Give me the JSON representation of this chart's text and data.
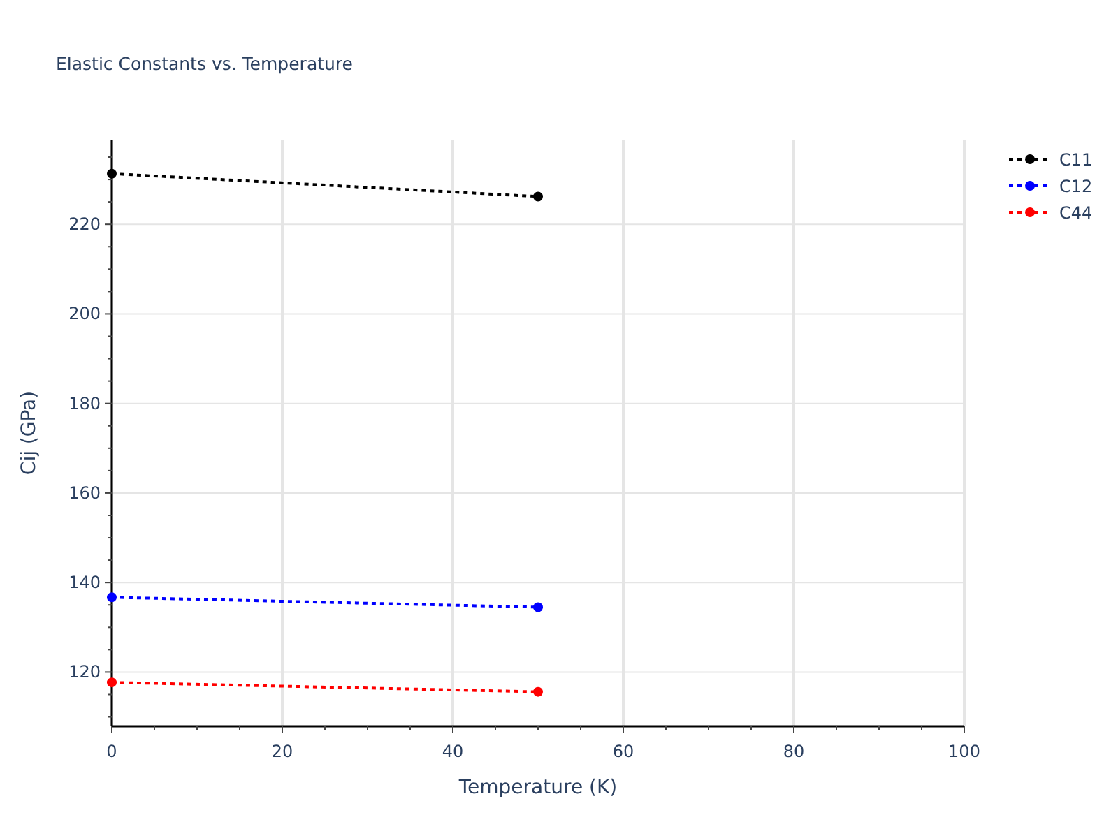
{
  "chart_data": {
    "type": "line",
    "title": "Elastic Constants vs. Temperature",
    "xlabel": "Temperature (K)",
    "ylabel": "Cij (GPa)",
    "x": [
      0,
      50
    ],
    "series": [
      {
        "name": "C11",
        "color": "#000000",
        "values": [
          231.3,
          226.2
        ]
      },
      {
        "name": "C12",
        "color": "#0000ff",
        "values": [
          136.7,
          134.5
        ]
      },
      {
        "name": "C44",
        "color": "#ff0000",
        "values": [
          117.7,
          115.6
        ]
      }
    ],
    "xlim": [
      0,
      100
    ],
    "ylim": [
      107.9,
      238.9
    ],
    "xticks": [
      0,
      {
        "value": 5,
        "label": null
      },
      {
        "value": 10,
        "label": null
      },
      {
        "value": 15,
        "label": null
      },
      20,
      {
        "value": 25,
        "label": null
      },
      {
        "value": 30,
        "label": null
      },
      {
        "value": 35,
        "label": null
      },
      40,
      {
        "value": 45,
        "label": null
      },
      {
        "value": 50,
        "label": null
      },
      {
        "value": 55,
        "label": null
      },
      60,
      {
        "value": 65,
        "label": null
      },
      {
        "value": 70,
        "label": null
      },
      {
        "value": 75,
        "label": null
      },
      80,
      {
        "value": 85,
        "label": null
      },
      {
        "value": 90,
        "label": null
      },
      {
        "value": 95,
        "label": null
      },
      100
    ],
    "yticks": [
      {
        "value": 110,
        "label": null
      },
      {
        "value": 115,
        "label": null
      },
      120,
      {
        "value": 125,
        "label": null
      },
      {
        "value": 130,
        "label": null
      },
      {
        "value": 135,
        "label": null
      },
      140,
      {
        "value": 145,
        "label": null
      },
      {
        "value": 150,
        "label": null
      },
      {
        "value": 155,
        "label": null
      },
      160,
      {
        "value": 165,
        "label": null
      },
      {
        "value": 170,
        "label": null
      },
      {
        "value": 175,
        "label": null
      },
      180,
      {
        "value": 185,
        "label": null
      },
      {
        "value": 190,
        "label": null
      },
      {
        "value": 195,
        "label": null
      },
      200,
      {
        "value": 205,
        "label": null
      },
      {
        "value": 210,
        "label": null
      },
      {
        "value": 215,
        "label": null
      },
      220,
      {
        "value": 225,
        "label": null
      },
      {
        "value": 230,
        "label": null
      },
      {
        "value": 235,
        "label": null
      }
    ],
    "grid": true,
    "legend": "top right",
    "marker": "circle",
    "line_style": "dotted"
  }
}
